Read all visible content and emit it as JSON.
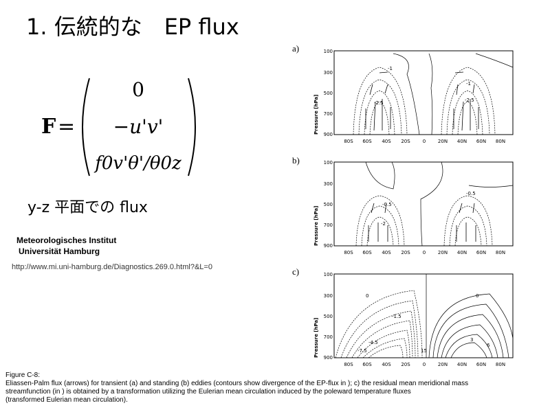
{
  "title": "1. 伝統的な　EP flux",
  "equation": {
    "lhs": "F",
    "equals": "=",
    "rows": [
      "0",
      "−u'v'",
      "f0v'θ'/θ0z"
    ]
  },
  "plane_label": "y-z 平面での flux",
  "institute": {
    "line1": "Meteorologisches Institut",
    "line2": " Universität Hamburg"
  },
  "url": "http://www.mi.uni-hamburg.de/Diagnostics.269.0.html?&L=0",
  "panels": [
    {
      "label": "a)",
      "ylabel": "Pressure [hPa]",
      "yticks": [
        "100",
        "300",
        "500",
        "700",
        "900"
      ],
      "xticks": [
        "80S",
        "60S",
        "40S",
        "20S",
        "0",
        "20N",
        "40N",
        "60N",
        "80N"
      ],
      "contour_labels": [
        "-1",
        "-2.5",
        "-2.5",
        "-1"
      ]
    },
    {
      "label": "b)",
      "ylabel": "Pressure [hPa]",
      "yticks": [
        "100",
        "300",
        "500",
        "700",
        "900"
      ],
      "xticks": [
        "80S",
        "60S",
        "40S",
        "20S",
        "0",
        "20N",
        "40N",
        "60N",
        "80N"
      ],
      "contour_labels": [
        "-0.5",
        "-0.5",
        "-2"
      ]
    },
    {
      "label": "c)",
      "ylabel": "Pressure [hPa]",
      "yticks": [
        "100",
        "300",
        "500",
        "700",
        "900"
      ],
      "xticks": [
        "80S",
        "60S",
        "40S",
        "20S",
        "0",
        "20N",
        "40N",
        "60N",
        "80N"
      ],
      "contour_labels": [
        "0",
        "-1.5",
        "-4.5",
        "-7.5",
        "15",
        "3",
        "6",
        "0"
      ]
    }
  ],
  "caption": {
    "line1": "Figure C-8:",
    "line2": " Eliassen-Palm flux (arrows) for transient (a) and standing (b) eddies (contours show divergence of the EP-flux in   ); c) the residual mean meridional mass",
    "line3": " streamfunction (in   ) is obtained by a transformation utilizing the Eulerian mean circulation induced by the poleward temperature fluxes",
    "line4": "(transformed Eulerian mean circulation)."
  }
}
